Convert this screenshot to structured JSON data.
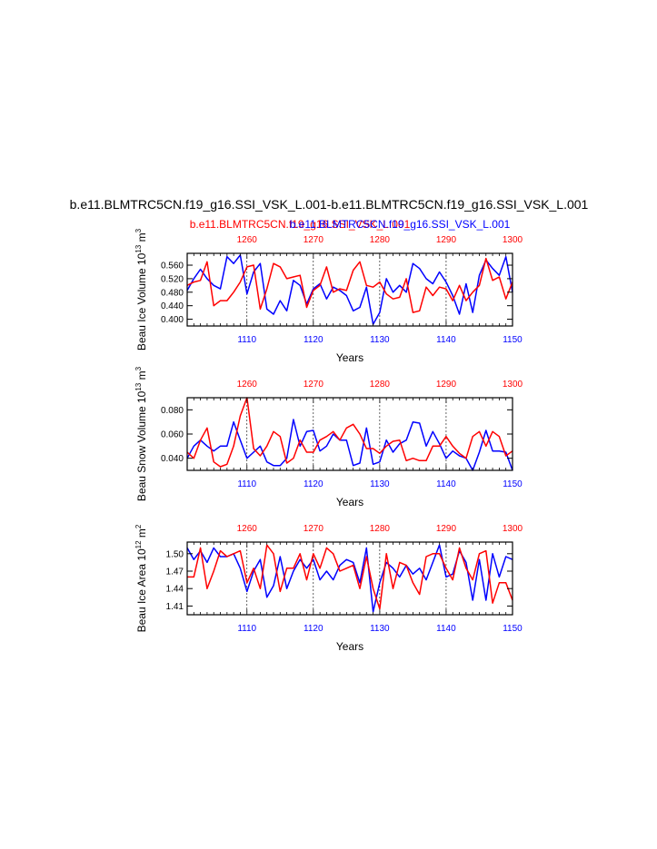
{
  "title": "b.e11.BLMTRC5CN.f19_g16.SSI_VSK_L.001-b.e11.BLMTRC5CN.f19_g16.SSI_VSK_L.001",
  "subtitle_left": "b.e11.BLMTRC5CN.f19_g16.SSI_VSK_L.001",
  "subtitle_right": "b.e11.BLMTRC5CN.f19_g16.SSI_VSK_L.001",
  "colors": {
    "case_a": "#ff0000",
    "case_b": "#0000ff",
    "axis": "#000000"
  },
  "chart_data": [
    {
      "type": "line",
      "ylabel_main": "Beau Ice Volume 10",
      "ylabel_exp": "13",
      "ylabel_unit": " m",
      "ylabel_unit_exp": "3",
      "xlabel": "Years",
      "ylim": [
        0.38,
        0.595
      ],
      "yticks": [
        0.4,
        0.44,
        0.48,
        0.52,
        0.56
      ],
      "ytick_labels": [
        "0.400",
        "0.440",
        "0.480",
        "0.520",
        "0.560"
      ],
      "bottom_axis": {
        "range": [
          1101,
          1150
        ],
        "ticks": [
          1110,
          1120,
          1130,
          1140,
          1150
        ]
      },
      "top_axis": {
        "range": [
          1251,
          1300
        ],
        "ticks": [
          1260,
          1270,
          1280,
          1290,
          1300
        ]
      },
      "series": [
        {
          "values": [
            0.485,
            0.52,
            0.548,
            0.52,
            0.5,
            0.49,
            0.585,
            0.565,
            0.59,
            0.475,
            0.54,
            0.565,
            0.43,
            0.415,
            0.455,
            0.425,
            0.515,
            0.5,
            0.445,
            0.49,
            0.505,
            0.46,
            0.495,
            0.485,
            0.47,
            0.425,
            0.435,
            0.495,
            0.385,
            0.42,
            0.52,
            0.48,
            0.5,
            0.48,
            0.565,
            0.55,
            0.52,
            0.505,
            0.54,
            0.51,
            0.47,
            0.415,
            0.505,
            0.42,
            0.53,
            0.575,
            0.55,
            0.53,
            0.585,
            0.48
          ]
        },
        {
          "values": [
            0.5,
            0.51,
            0.515,
            0.57,
            0.44,
            0.455,
            0.455,
            0.48,
            0.51,
            0.555,
            0.56,
            0.43,
            0.49,
            0.565,
            0.555,
            0.52,
            0.525,
            0.53,
            0.435,
            0.485,
            0.5,
            0.555,
            0.48,
            0.49,
            0.485,
            0.545,
            0.57,
            0.5,
            0.495,
            0.51,
            0.475,
            0.46,
            0.465,
            0.52,
            0.42,
            0.425,
            0.495,
            0.47,
            0.495,
            0.49,
            0.455,
            0.5,
            0.455,
            0.48,
            0.5,
            0.58,
            0.515,
            0.525,
            0.46,
            0.51
          ]
        }
      ]
    },
    {
      "type": "line",
      "ylabel_main": "Beau Snow Volume 10",
      "ylabel_exp": "13",
      "ylabel_unit": " m",
      "ylabel_unit_exp": "3",
      "xlabel": "Years",
      "ylim": [
        0.03,
        0.09
      ],
      "yticks": [
        0.04,
        0.06,
        0.08
      ],
      "ytick_labels": [
        "0.040",
        "0.060",
        "0.080"
      ],
      "bottom_axis": {
        "range": [
          1101,
          1150
        ],
        "ticks": [
          1110,
          1120,
          1130,
          1140,
          1150
        ]
      },
      "top_axis": {
        "range": [
          1251,
          1300
        ],
        "ticks": [
          1260,
          1270,
          1280,
          1290,
          1300
        ]
      },
      "series": [
        {
          "values": [
            0.04,
            0.05,
            0.055,
            0.05,
            0.046,
            0.05,
            0.05,
            0.07,
            0.055,
            0.04,
            0.045,
            0.05,
            0.037,
            0.034,
            0.034,
            0.04,
            0.072,
            0.05,
            0.062,
            0.063,
            0.046,
            0.05,
            0.06,
            0.055,
            0.055,
            0.034,
            0.036,
            0.065,
            0.035,
            0.037,
            0.055,
            0.045,
            0.052,
            0.055,
            0.07,
            0.069,
            0.05,
            0.062,
            0.052,
            0.04,
            0.046,
            0.042,
            0.04,
            0.03,
            0.045,
            0.063,
            0.046,
            0.046,
            0.045,
            0.03
          ]
        },
        {
          "values": [
            0.045,
            0.04,
            0.055,
            0.065,
            0.037,
            0.033,
            0.035,
            0.05,
            0.075,
            0.09,
            0.048,
            0.042,
            0.05,
            0.062,
            0.058,
            0.036,
            0.04,
            0.055,
            0.045,
            0.045,
            0.055,
            0.058,
            0.062,
            0.055,
            0.065,
            0.068,
            0.06,
            0.048,
            0.048,
            0.044,
            0.05,
            0.054,
            0.055,
            0.038,
            0.04,
            0.038,
            0.038,
            0.05,
            0.05,
            0.058,
            0.05,
            0.044,
            0.04,
            0.058,
            0.062,
            0.05,
            0.062,
            0.058,
            0.042,
            0.046
          ]
        }
      ]
    },
    {
      "type": "line",
      "ylabel_main": "Beau Ice Area 10",
      "ylabel_exp": "12",
      "ylabel_unit": " m",
      "ylabel_unit_exp": "2",
      "xlabel": "Years",
      "ylim": [
        1.395,
        1.52
      ],
      "yticks": [
        1.41,
        1.44,
        1.47,
        1.5
      ],
      "ytick_labels": [
        "1.41",
        "1.44",
        "1.47",
        "1.50"
      ],
      "bottom_axis": {
        "range": [
          1101,
          1150
        ],
        "ticks": [
          1110,
          1120,
          1130,
          1140,
          1150
        ]
      },
      "top_axis": {
        "range": [
          1251,
          1300
        ],
        "ticks": [
          1260,
          1270,
          1280,
          1290,
          1300
        ]
      },
      "series": [
        {
          "values": [
            1.51,
            1.49,
            1.505,
            1.485,
            1.51,
            1.495,
            1.495,
            1.5,
            1.475,
            1.435,
            1.47,
            1.49,
            1.425,
            1.445,
            1.495,
            1.44,
            1.47,
            1.49,
            1.475,
            1.49,
            1.455,
            1.47,
            1.455,
            1.48,
            1.49,
            1.485,
            1.45,
            1.51,
            1.4,
            1.45,
            1.485,
            1.475,
            1.46,
            1.48,
            1.465,
            1.475,
            1.455,
            1.485,
            1.515,
            1.46,
            1.465,
            1.505,
            1.485,
            1.42,
            1.49,
            1.42,
            1.5,
            1.46,
            1.495,
            1.49
          ]
        },
        {
          "values": [
            1.46,
            1.46,
            1.51,
            1.44,
            1.47,
            1.505,
            1.495,
            1.5,
            1.505,
            1.45,
            1.475,
            1.44,
            1.515,
            1.5,
            1.435,
            1.475,
            1.475,
            1.5,
            1.455,
            1.5,
            1.475,
            1.51,
            1.5,
            1.47,
            1.475,
            1.48,
            1.44,
            1.495,
            1.44,
            1.405,
            1.5,
            1.44,
            1.485,
            1.48,
            1.45,
            1.43,
            1.495,
            1.5,
            1.5,
            1.475,
            1.455,
            1.51,
            1.475,
            1.455,
            1.5,
            1.505,
            1.415,
            1.45,
            1.45,
            1.42
          ]
        }
      ]
    }
  ]
}
